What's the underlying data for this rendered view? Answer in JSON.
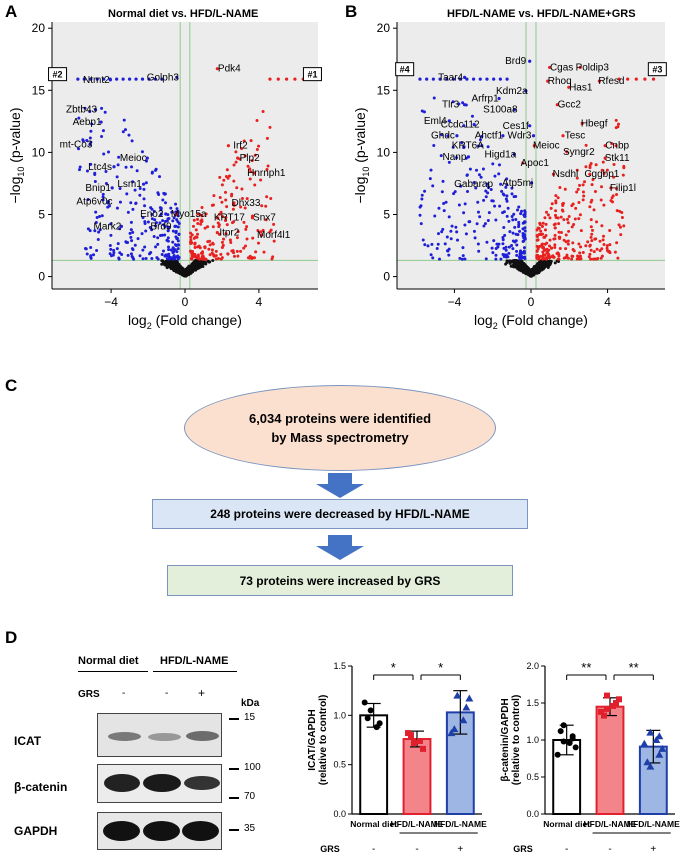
{
  "panel_letters": {
    "a": "A",
    "b": "B",
    "c": "C",
    "d": "D"
  },
  "chart_data": [
    {
      "type": "scatter",
      "title": "Normal diet vs. HFD/L-NAME",
      "xlabel_main": "log",
      "xlabel_sub": "2",
      "xlabel_rest": " (Fold change)",
      "ylabel_main": "−log",
      "ylabel_sub": "10",
      "ylabel_rest": " (p-value)",
      "xlim": [
        -7.2,
        7.2
      ],
      "ylim": [
        -1,
        20.5
      ],
      "xticks": [
        -4,
        0,
        4
      ],
      "yticks": [
        0,
        5,
        10,
        15,
        20
      ],
      "xtick_labels": [
        "−4",
        "0",
        "4"
      ],
      "ytick_labels": [
        "0",
        "5",
        "10",
        "15",
        "20"
      ],
      "threshold_x": [
        -0.26,
        0.26
      ],
      "threshold_y": 1.3,
      "boxed_labels": [
        {
          "text": "#2",
          "x": -6.9,
          "y": 16.1
        },
        {
          "text": "#1",
          "x": 6.9,
          "y": 16.1
        }
      ],
      "gene_labels": [
        {
          "text": "Ntmt2",
          "x": -4.8,
          "y": 15.6,
          "color": "blue"
        },
        {
          "text": "Golph3",
          "x": -1.2,
          "y": 15.8,
          "color": "blue"
        },
        {
          "text": "Pdk4",
          "x": 2.4,
          "y": 16.5,
          "color": "red"
        },
        {
          "text": "Zbtb43",
          "x": -5.6,
          "y": 13.2,
          "color": "blue"
        },
        {
          "text": "Aebp1",
          "x": -5.3,
          "y": 12.2,
          "color": "blue"
        },
        {
          "text": "mt-Co3",
          "x": -5.9,
          "y": 10.4,
          "color": "blue"
        },
        {
          "text": "Meioc",
          "x": -2.8,
          "y": 9.3,
          "color": "blue"
        },
        {
          "text": "Ltc4s",
          "x": -4.6,
          "y": 8.6,
          "color": "blue"
        },
        {
          "text": "Lsm1",
          "x": -3.0,
          "y": 7.2,
          "color": "blue"
        },
        {
          "text": "Bnip1",
          "x": -4.7,
          "y": 6.9,
          "color": "blue"
        },
        {
          "text": "Atp6v0c",
          "x": -4.9,
          "y": 5.8,
          "color": "blue"
        },
        {
          "text": "Eno2",
          "x": -1.8,
          "y": 4.8,
          "color": "blue"
        },
        {
          "text": "Mark2",
          "x": -4.2,
          "y": 3.8,
          "color": "blue"
        },
        {
          "text": "Brd9",
          "x": -1.3,
          "y": 3.8,
          "color": "blue"
        },
        {
          "text": "Irf2",
          "x": 3.0,
          "y": 10.3,
          "color": "red"
        },
        {
          "text": "Plp2",
          "x": 3.5,
          "y": 9.3,
          "color": "red"
        },
        {
          "text": "Hnrnph1",
          "x": 4.4,
          "y": 8.1,
          "color": "red"
        },
        {
          "text": "Dhx33",
          "x": 3.3,
          "y": 5.7,
          "color": "red"
        },
        {
          "text": "Myo15a",
          "x": 0.2,
          "y": 4.8,
          "color": "red"
        },
        {
          "text": "KRT17",
          "x": 2.4,
          "y": 4.5,
          "color": "red"
        },
        {
          "text": "Snx7",
          "x": 4.3,
          "y": 4.5,
          "color": "red"
        },
        {
          "text": "Itpr2",
          "x": 2.4,
          "y": 3.3,
          "color": "red"
        },
        {
          "text": "Morf4l1",
          "x": 4.8,
          "y": 3.1,
          "color": "red"
        }
      ],
      "down_count": 248,
      "up_count": 210,
      "seed": 7
    },
    {
      "type": "scatter",
      "title": "HFD/L-NAME vs. HFD/L-NAME+GRS",
      "xlabel_main": "log",
      "xlabel_sub": "2",
      "xlabel_rest": " (Fold change)",
      "ylabel_main": "−log",
      "ylabel_sub": "10",
      "ylabel_rest": " (p-value)",
      "xlim": [
        -7.0,
        7.0
      ],
      "ylim": [
        -1,
        20.5
      ],
      "xticks": [
        -4,
        0,
        4
      ],
      "yticks": [
        0,
        5,
        10,
        15,
        20
      ],
      "xtick_labels": [
        "−4",
        "0",
        "4"
      ],
      "ytick_labels": [
        "0",
        "5",
        "10",
        "15",
        "20"
      ],
      "threshold_x": [
        -0.26,
        0.26
      ],
      "threshold_y": 1.3,
      "boxed_labels": [
        {
          "text": "#4",
          "x": -6.6,
          "y": 16.5
        },
        {
          "text": "#3",
          "x": 6.6,
          "y": 16.5
        }
      ],
      "gene_labels": [
        {
          "text": "Brd9",
          "x": -0.8,
          "y": 17.1,
          "color": "blue"
        },
        {
          "text": "Cgas",
          "x": 1.6,
          "y": 16.6,
          "color": "red"
        },
        {
          "text": "Poldip3",
          "x": 3.2,
          "y": 16.6,
          "color": "red"
        },
        {
          "text": "Taar4",
          "x": -4.2,
          "y": 15.8,
          "color": "blue"
        },
        {
          "text": "Rhoq",
          "x": 1.5,
          "y": 15.5,
          "color": "red"
        },
        {
          "text": "Has1",
          "x": 2.6,
          "y": 15.0,
          "color": "red"
        },
        {
          "text": "Rfesd",
          "x": 4.2,
          "y": 15.5,
          "color": "red"
        },
        {
          "text": "Kdm2a",
          "x": -1.0,
          "y": 14.7,
          "color": "blue"
        },
        {
          "text": "Arfrp1",
          "x": -2.4,
          "y": 14.1,
          "color": "blue"
        },
        {
          "text": "Tlr3",
          "x": -4.2,
          "y": 13.6,
          "color": "blue"
        },
        {
          "text": "S100a8",
          "x": -1.6,
          "y": 13.2,
          "color": "blue"
        },
        {
          "text": "Gcc2",
          "x": 2.0,
          "y": 13.6,
          "color": "red"
        },
        {
          "text": "Eml4",
          "x": -5.0,
          "y": 12.3,
          "color": "blue"
        },
        {
          "text": "Ccdc112",
          "x": -3.7,
          "y": 12.0,
          "color": "blue"
        },
        {
          "text": "Ces1f",
          "x": -0.8,
          "y": 11.9,
          "color": "blue"
        },
        {
          "text": "Hbegf",
          "x": 3.3,
          "y": 12.1,
          "color": "red"
        },
        {
          "text": "Ghdc",
          "x": -4.6,
          "y": 11.1,
          "color": "blue"
        },
        {
          "text": "Ahctf1",
          "x": -2.2,
          "y": 11.1,
          "color": "blue"
        },
        {
          "text": "Wdr3",
          "x": -0.6,
          "y": 11.1,
          "color": "blue"
        },
        {
          "text": "Tesc",
          "x": 2.3,
          "y": 11.1,
          "color": "red"
        },
        {
          "text": "Cnbp",
          "x": 4.5,
          "y": 10.3,
          "color": "red"
        },
        {
          "text": "KRT6A",
          "x": -3.3,
          "y": 10.3,
          "color": "blue"
        },
        {
          "text": "Meioc",
          "x": 0.8,
          "y": 10.3,
          "color": "red"
        },
        {
          "text": "Syngr2",
          "x": 2.5,
          "y": 9.8,
          "color": "red"
        },
        {
          "text": "Higd1a",
          "x": -1.6,
          "y": 9.6,
          "color": "blue"
        },
        {
          "text": "Apoc1",
          "x": 0.2,
          "y": 8.9,
          "color": "red"
        },
        {
          "text": "Stk11",
          "x": 4.5,
          "y": 9.3,
          "color": "red"
        },
        {
          "text": "Nanp",
          "x": -4.0,
          "y": 9.4,
          "color": "blue"
        },
        {
          "text": "Nsdhl",
          "x": 1.8,
          "y": 8.0,
          "color": "red"
        },
        {
          "text": "Cggbp1",
          "x": 3.7,
          "y": 8.0,
          "color": "red"
        },
        {
          "text": "Gabarap",
          "x": -3.0,
          "y": 7.2,
          "color": "blue"
        },
        {
          "text": "Atp5mj",
          "x": -0.7,
          "y": 7.3,
          "color": "blue"
        },
        {
          "text": "Filip1l",
          "x": 4.8,
          "y": 6.9,
          "color": "red"
        }
      ],
      "down_count": 230,
      "up_count": 260,
      "seed": 19
    },
    {
      "type": "bar",
      "title": "",
      "ylabel_line1": "ICAT/GAPDH",
      "ylabel_line2": "(relative to control)",
      "categories": [
        "Normal diet",
        "HFD/L-NAME",
        "HFD/L-NAME"
      ],
      "grs_row": [
        "-",
        "-",
        "+"
      ],
      "grs_label": "GRS",
      "values": [
        1.0,
        0.76,
        1.03
      ],
      "errors": [
        0.12,
        0.08,
        0.22
      ],
      "ylim": [
        0,
        1.5
      ],
      "yticks": [
        0.0,
        0.5,
        1.0,
        1.5
      ],
      "ytick_labels": [
        "0.0",
        "0.5",
        "1.0",
        "1.5"
      ],
      "colors": [
        "#ffffff",
        "#f3848a",
        "#9db6e3"
      ],
      "edge_colors": [
        "#000000",
        "#e0212d",
        "#1f3fa8"
      ],
      "points": [
        [
          1.05,
          0.92,
          1.13,
          0.88,
          0.97
        ],
        [
          0.72,
          0.66,
          0.82,
          0.74,
          0.8
        ],
        [
          1.2,
          1.08,
          0.82,
          0.95,
          0.86,
          1.17
        ]
      ],
      "significance": [
        {
          "from": 0,
          "to": 1,
          "label": "*"
        },
        {
          "from": 1,
          "to": 2,
          "label": "*"
        }
      ]
    },
    {
      "type": "bar",
      "title": "",
      "ylabel_line1": "β-catenin/GAPDH",
      "ylabel_line2": "(relative to control)",
      "categories": [
        "Normal diet",
        "HFD/L-NAME",
        "HFD/L-NAME"
      ],
      "grs_row": [
        "-",
        "-",
        "+"
      ],
      "grs_label": "GRS",
      "values": [
        1.0,
        1.45,
        0.91
      ],
      "errors": [
        0.2,
        0.12,
        0.22
      ],
      "ylim": [
        0,
        2.0
      ],
      "yticks": [
        0.0,
        0.5,
        1.0,
        1.5,
        2.0
      ],
      "ytick_labels": [
        "0.0",
        "0.5",
        "1.0",
        "1.5",
        "2.0"
      ],
      "colors": [
        "#ffffff",
        "#f3848a",
        "#9db6e3"
      ],
      "edge_colors": [
        "#000000",
        "#e0212d",
        "#1f3fa8"
      ],
      "points": [
        [
          1.2,
          1.05,
          0.8,
          0.96,
          1.12,
          0.9,
          0.98,
          1.02
        ],
        [
          1.6,
          1.5,
          1.38,
          1.46,
          1.33,
          1.55,
          1.42
        ],
        [
          1.1,
          0.8,
          0.95,
          1.0,
          0.7,
          0.88,
          0.64,
          1.05
        ]
      ],
      "significance": [
        {
          "from": 0,
          "to": 1,
          "label": "**"
        },
        {
          "from": 1,
          "to": 2,
          "label": "**"
        }
      ]
    }
  ],
  "flow": {
    "step1_line1": "6,034 proteins were identified",
    "step1_line2": "by Mass spectrometry",
    "step2": "248 proteins were decreased by HFD/L-NAME",
    "step3": "73 proteins were increased by GRS"
  },
  "western": {
    "group_normal": "Normal diet",
    "group_hfd": "HFD/L-NAME",
    "grs_label": "GRS",
    "grs_values": [
      "-",
      "-",
      "+"
    ],
    "kda_label": "kDa",
    "blots": [
      {
        "name": "ICAT",
        "markers": [
          "15"
        ]
      },
      {
        "name": "β-catenin",
        "markers": [
          "100",
          "70"
        ]
      },
      {
        "name": "GAPDH",
        "markers": [
          "35"
        ]
      }
    ]
  },
  "colors": {
    "up": "#e8201f",
    "down": "#1f1fd8",
    "ns": "#111111",
    "threshold": "#8fc98f",
    "plot_bg": "#ececec",
    "flow_top": "#fbe0cf",
    "flow_mid": "#dae5f5",
    "flow_bottom": "#e3efda",
    "arrow": "#4472c4"
  }
}
